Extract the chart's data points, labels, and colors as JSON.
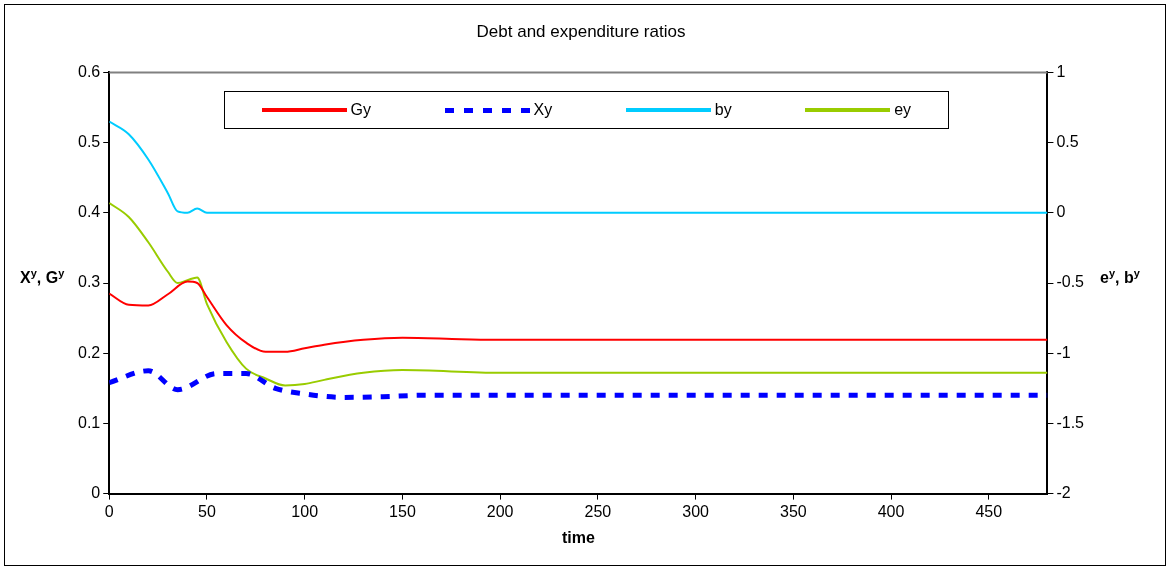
{
  "chart_data": {
    "type": "line",
    "title": "Debt and expenditure ratios",
    "xlabel": "time",
    "ylabel": "X$^{y}$, G$^{y}$",
    "y2label": "e$^{y}$, b$^{y}$",
    "xlim": [
      0,
      480
    ],
    "xticks": [
      0,
      50,
      100,
      150,
      200,
      250,
      300,
      350,
      400,
      450
    ],
    "ylim": [
      0,
      0.6
    ],
    "yticks": [
      0,
      0.1,
      0.2,
      0.3,
      0.4,
      0.5,
      0.6
    ],
    "y2lim": [
      -2,
      1
    ],
    "y2ticks": [
      -2,
      -1.5,
      -1,
      -0.5,
      0,
      0.5,
      1
    ],
    "grid": false,
    "legend": "top",
    "marker": "none",
    "series": [
      {
        "name": "Gy",
        "color": "#ff0000",
        "x": [
          0,
          10,
          20,
          30,
          40,
          45,
          50,
          60,
          70,
          80,
          90,
          100,
          110,
          130,
          150,
          180,
          200,
          480
        ],
        "values": [
          0.285,
          0.269,
          0.268,
          0.284,
          0.302,
          0.3,
          0.28,
          0.24,
          0.215,
          0.202,
          0.202,
          0.207,
          0.212,
          0.219,
          0.222,
          0.22,
          0.219,
          0.219
        ]
      },
      {
        "name": "Xy",
        "color": "#0000ff",
        "line_style": "dashed",
        "x": [
          0,
          20,
          35,
          55,
          70,
          85,
          100,
          120,
          140,
          160,
          480
        ],
        "values": [
          0.158,
          0.175,
          0.148,
          0.171,
          0.171,
          0.15,
          0.142,
          0.137,
          0.138,
          0.14,
          0.14
        ]
      },
      {
        "name": "by",
        "color": "#00ccff",
        "axis": "y2",
        "x": [
          0,
          10,
          20,
          30,
          35,
          40,
          45,
          50,
          480
        ],
        "values": [
          0.65,
          0.56,
          0.38,
          0.14,
          0.01,
          0,
          0.03,
          0,
          0
        ]
      },
      {
        "name": "ey",
        "color": "#99cc00",
        "axis": "y2",
        "x": [
          0,
          10,
          20,
          30,
          35,
          40,
          45,
          50,
          60,
          70,
          80,
          90,
          100,
          110,
          130,
          150,
          200,
          480
        ],
        "values": [
          0.07,
          -0.03,
          -0.21,
          -0.42,
          -0.5,
          -0.48,
          -0.46,
          -0.65,
          -0.92,
          -1.11,
          -1.18,
          -1.23,
          -1.22,
          -1.19,
          -1.14,
          -1.12,
          -1.14,
          -1.14
        ]
      }
    ]
  }
}
